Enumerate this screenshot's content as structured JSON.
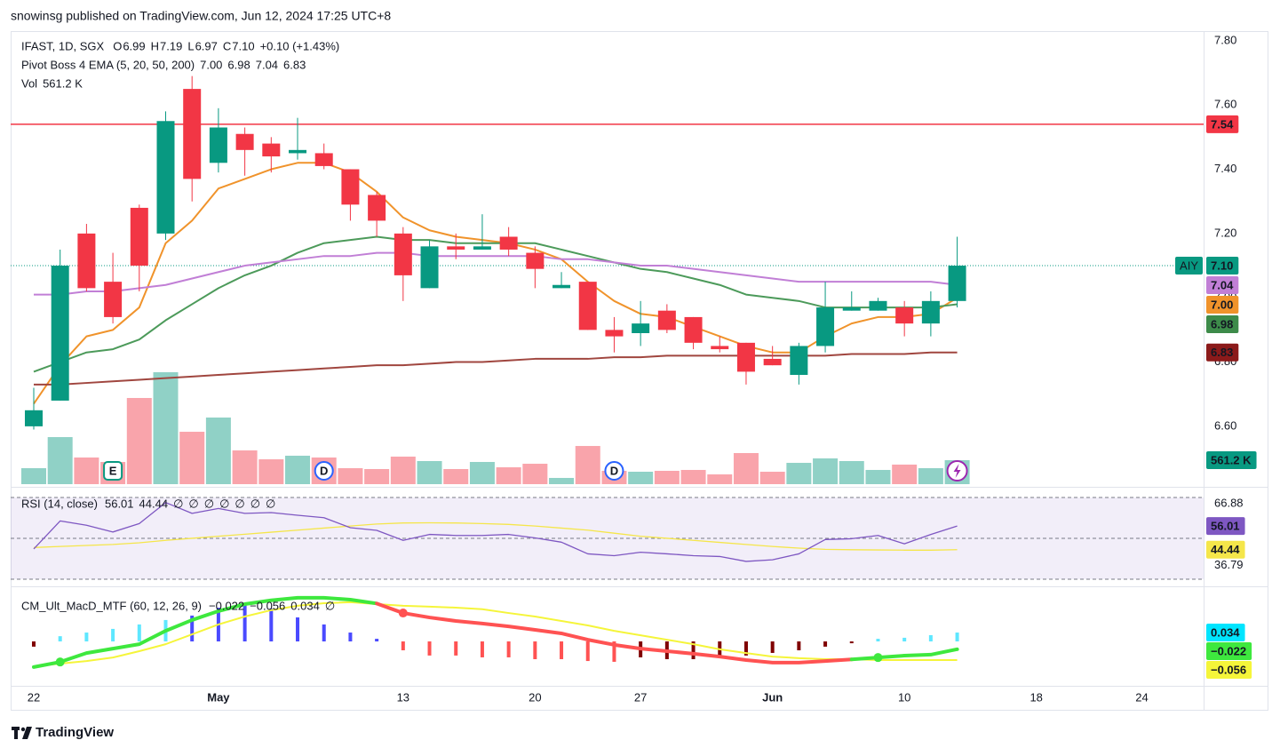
{
  "published": "snowinsg published on TradingView.com, Jun 12, 2024 17:25 UTC+8",
  "brand": "TradingView",
  "chart_data": [
    {
      "type": "candlestick",
      "title": "IFAST, 1D, SGX",
      "status": [
        {
          "text": "O",
          "color": "#131722"
        },
        {
          "text": "6.99",
          "color": "#089981"
        },
        {
          "text": "H",
          "color": "#131722"
        },
        {
          "text": "7.19",
          "color": "#089981"
        },
        {
          "text": "L",
          "color": "#131722"
        },
        {
          "text": "6.97",
          "color": "#089981"
        },
        {
          "text": "C",
          "color": "#131722"
        },
        {
          "text": "7.10",
          "color": "#089981"
        },
        {
          "text": "+0.10 (+1.43%)",
          "color": "#089981"
        }
      ],
      "indicators": [
        {
          "title": "Pivot Boss 4 EMA (5, 20, 50, 200)",
          "values": [
            {
              "text": "7.00",
              "color": "#f0932b"
            },
            {
              "text": "6.98",
              "color": "#4c9a5a"
            },
            {
              "text": "7.04",
              "color": "#c17fd6"
            },
            {
              "text": "6.83",
              "color": "#a0463f"
            }
          ]
        },
        {
          "title": "Vol",
          "values": [
            {
              "text": "561.2 K",
              "color": "#089981"
            }
          ]
        }
      ],
      "up_color": "#089981",
      "down_color": "#f23645",
      "x": [
        0,
        1,
        2,
        3,
        4,
        5,
        6,
        7,
        8,
        9,
        10,
        11,
        12,
        13,
        14,
        15,
        16,
        17,
        18,
        19,
        20,
        21,
        22,
        23,
        24,
        25,
        26,
        27,
        28,
        29,
        30,
        31,
        32,
        33,
        34,
        35
      ],
      "xlim": [
        -0.875,
        44.34
      ],
      "xticks": [
        {
          "value": 0,
          "label": "22"
        },
        {
          "value": 7,
          "label": "May"
        },
        {
          "value": 14,
          "label": "13"
        },
        {
          "value": 19,
          "label": "20"
        },
        {
          "value": 23,
          "label": "27"
        },
        {
          "value": 28,
          "label": "Jun"
        },
        {
          "value": 33,
          "label": "10"
        },
        {
          "value": 38,
          "label": "18"
        },
        {
          "value": 42,
          "label": "24"
        }
      ],
      "ylim": [
        6.42,
        7.83
      ],
      "yticks": [
        {
          "value": 6.6,
          "label": "6.60"
        },
        {
          "value": 6.8,
          "label": "6.80"
        },
        {
          "value": 7.0,
          "label": "7.00"
        },
        {
          "value": 7.2,
          "label": "7.20"
        },
        {
          "value": 7.4,
          "label": "7.40"
        },
        {
          "value": 7.6,
          "label": "7.60"
        },
        {
          "value": 7.8,
          "label": "7.80"
        }
      ],
      "open": [
        6.6,
        6.68,
        7.2,
        7.05,
        7.28,
        7.2,
        7.65,
        7.42,
        7.51,
        7.48,
        7.45,
        7.45,
        7.4,
        7.32,
        7.2,
        7.03,
        7.16,
        7.15,
        7.19,
        7.14,
        7.03,
        7.05,
        6.9,
        6.89,
        6.96,
        6.94,
        6.85,
        6.86,
        6.81,
        6.76,
        6.85,
        6.96,
        6.96,
        6.97,
        6.92,
        6.99
      ],
      "high": [
        6.72,
        7.15,
        7.23,
        7.14,
        7.29,
        7.58,
        7.69,
        7.59,
        7.53,
        7.5,
        7.56,
        7.48,
        7.4,
        7.33,
        7.22,
        7.18,
        7.2,
        7.26,
        7.22,
        7.16,
        7.08,
        7.05,
        6.94,
        6.99,
        6.98,
        6.94,
        6.88,
        6.86,
        6.85,
        6.86,
        7.05,
        7.02,
        7.0,
        6.99,
        7.02,
        7.19
      ],
      "low": [
        6.59,
        6.68,
        7.02,
        6.92,
        7.02,
        7.18,
        7.3,
        7.39,
        7.38,
        7.39,
        7.43,
        7.4,
        7.24,
        7.19,
        6.99,
        7.03,
        7.12,
        7.15,
        7.13,
        7.03,
        7.03,
        6.9,
        6.83,
        6.85,
        6.89,
        6.84,
        6.83,
        6.73,
        6.79,
        6.73,
        6.83,
        6.96,
        6.96,
        6.88,
        6.88,
        6.97
      ],
      "close": [
        6.65,
        7.1,
        7.03,
        6.94,
        7.1,
        7.55,
        7.37,
        7.53,
        7.46,
        7.44,
        7.46,
        7.41,
        7.29,
        7.24,
        7.07,
        7.16,
        7.15,
        7.16,
        7.15,
        7.09,
        7.04,
        6.9,
        6.88,
        6.92,
        6.9,
        6.86,
        6.84,
        6.77,
        6.79,
        6.85,
        6.97,
        6.97,
        6.99,
        6.92,
        6.99,
        7.1
      ],
      "series": [
        {
          "color": "#f0932b",
          "values": [
            6.67,
            6.79,
            6.88,
            6.9,
            6.97,
            7.17,
            7.24,
            7.34,
            7.37,
            7.4,
            7.42,
            7.42,
            7.39,
            7.33,
            7.25,
            7.21,
            7.19,
            7.18,
            7.17,
            7.15,
            7.12,
            7.05,
            6.99,
            6.95,
            6.94,
            6.91,
            6.88,
            6.85,
            6.83,
            6.83,
            6.88,
            6.92,
            6.94,
            6.94,
            6.95,
            7.0
          ]
        },
        {
          "color": "#4c9a5a",
          "values": [
            6.77,
            6.8,
            6.83,
            6.84,
            6.87,
            6.93,
            6.98,
            7.03,
            7.07,
            7.1,
            7.14,
            7.17,
            7.18,
            7.19,
            7.18,
            7.18,
            7.17,
            7.17,
            7.17,
            7.17,
            7.15,
            7.13,
            7.11,
            7.09,
            7.08,
            7.06,
            7.04,
            7.01,
            7.0,
            6.99,
            6.97,
            6.97,
            6.97,
            6.97,
            6.97,
            6.98
          ]
        },
        {
          "color": "#c17fd6",
          "values": [
            7.01,
            7.01,
            7.02,
            7.02,
            7.03,
            7.04,
            7.06,
            7.08,
            7.1,
            7.11,
            7.12,
            7.13,
            7.13,
            7.14,
            7.14,
            7.13,
            7.13,
            7.13,
            7.13,
            7.13,
            7.12,
            7.12,
            7.11,
            7.1,
            7.1,
            7.09,
            7.08,
            7.07,
            7.06,
            7.05,
            7.05,
            7.05,
            7.05,
            7.05,
            7.05,
            7.04
          ]
        },
        {
          "color": "#a0463f",
          "values": [
            6.73,
            6.73,
            6.735,
            6.74,
            6.745,
            6.75,
            6.755,
            6.76,
            6.765,
            6.77,
            6.775,
            6.78,
            6.785,
            6.79,
            6.79,
            6.795,
            6.8,
            6.8,
            6.805,
            6.81,
            6.81,
            6.81,
            6.815,
            6.815,
            6.82,
            6.82,
            6.82,
            6.82,
            6.82,
            6.82,
            6.82,
            6.825,
            6.825,
            6.825,
            6.83,
            6.83
          ]
        }
      ],
      "volume": [
        374000,
        1102000,
        624000,
        520000,
        2018000,
        2621000,
        1227000,
        1560000,
        790000,
        582000,
        666000,
        624000,
        374000,
        354000,
        645000,
        541000,
        354000,
        520000,
        395000,
        478000,
        146000,
        894000,
        312000,
        291000,
        312000,
        333000,
        229000,
        728000,
        291000,
        499000,
        603000,
        541000,
        333000,
        458000,
        374000,
        561200
      ],
      "volume_tag": {
        "value": 561200,
        "label": "561.2 K",
        "color": "#089981"
      },
      "hlines": [
        {
          "value": 7.54,
          "color": "#f23645"
        }
      ],
      "events": [
        {
          "x": 3,
          "label": "E",
          "color": "#089981"
        },
        {
          "x": 11,
          "label": "D",
          "color": "#2962ff"
        },
        {
          "x": 22,
          "label": "D",
          "color": "#2962ff"
        }
      ],
      "tags": [
        {
          "value": 7.54,
          "label": "7.54",
          "color": "#f23645",
          "text_color": "#ffffff"
        },
        {
          "value": 7.1,
          "label": "7.10",
          "name": "AIY",
          "color": "#089981",
          "text_color": "#ffffff"
        },
        {
          "value": 7.04,
          "label": "7.04",
          "color": "#c17fd6",
          "text_color": "#ffffff"
        },
        {
          "value": 7.0,
          "label": "7.00",
          "color": "#f0932b",
          "text_color": "#ffffff"
        },
        {
          "value": 6.98,
          "label": "6.98",
          "color": "#3d8b4a",
          "text_color": "#ffffff"
        },
        {
          "value": 6.83,
          "label": "6.83",
          "color": "#8b1a1a",
          "text_color": "#ffffff"
        }
      ]
    },
    {
      "type": "line",
      "title": "RSI (14, close)",
      "status": [
        {
          "text": "56.01",
          "color": "#7e57c2"
        },
        {
          "text": "44.44",
          "color": "#e6d84a"
        },
        {
          "text": "∅",
          "color": "#131722"
        },
        {
          "text": "∅",
          "color": "#131722"
        },
        {
          "text": "∅",
          "color": "#131722"
        },
        {
          "text": "∅",
          "color": "#131722"
        },
        {
          "text": "∅",
          "color": "#131722"
        },
        {
          "text": "∅",
          "color": "#131722"
        },
        {
          "text": "∅",
          "color": "#131722"
        }
      ],
      "ylim": [
        26.5,
        75.2
      ],
      "yticks": [
        66.88,
        36.79
      ],
      "levels": [
        70,
        50,
        30
      ],
      "band_color": "#7e57c2",
      "series": [
        {
          "color": "#7e57c2",
          "values": [
            44.8,
            58.5,
            56.4,
            53.1,
            57.2,
            67.5,
            62.2,
            64.6,
            62.2,
            62.6,
            61.3,
            60.1,
            55.2,
            53.9,
            49.0,
            51.9,
            51.4,
            51.4,
            51.9,
            50.2,
            48.1,
            42.4,
            41.5,
            43.2,
            42.4,
            41.5,
            41.1,
            38.7,
            39.5,
            42.4,
            49.4,
            49.8,
            51.4,
            47.3,
            51.9,
            56.01
          ]
        },
        {
          "color": "#f5e64a",
          "values": [
            45.5,
            46,
            46.5,
            47,
            47.8,
            49,
            50,
            51,
            52,
            53,
            54,
            55,
            56,
            57,
            57.5,
            57.6,
            57.5,
            57.2,
            56.8,
            56,
            55,
            54,
            52.5,
            51,
            50,
            49,
            48,
            47,
            46,
            45.2,
            44.6,
            44.4,
            44.3,
            44.2,
            44.2,
            44.44
          ]
        }
      ],
      "tags": [
        {
          "value": 56.01,
          "label": "56.01",
          "color": "#7e57c2",
          "text_color": "#ffffff"
        },
        {
          "value": 44.44,
          "label": "44.44",
          "color": "#f5e64a",
          "text_color": "#131722"
        }
      ]
    },
    {
      "type": "macd",
      "title": "CM_Ult_MacD_MTF (60, 12, 26, 9)",
      "status": [
        {
          "text": "−0.022",
          "color": "#22c022"
        },
        {
          "text": "−0.056",
          "color": "#d9c900"
        },
        {
          "text": "0.034",
          "color": "#00c8e0"
        },
        {
          "text": "∅",
          "color": "#131722"
        }
      ],
      "ylim": [
        -0.137,
        0.176
      ],
      "y2lim": [
        -0.17,
        0.211
      ],
      "macd": {
        "up_color": "#3ee83e",
        "down_color": "#ff5252",
        "values": [
          -0.078,
          -0.062,
          -0.034,
          -0.02,
          -0.006,
          0.036,
          0.07,
          0.098,
          0.12,
          0.132,
          0.14,
          0.14,
          0.134,
          0.122,
          0.092,
          0.078,
          0.067,
          0.059,
          0.05,
          0.039,
          0.028,
          0.008,
          -0.008,
          -0.02,
          -0.028,
          -0.036,
          -0.045,
          -0.056,
          -0.064,
          -0.064,
          -0.059,
          -0.054,
          -0.048,
          -0.042,
          -0.039,
          -0.022
        ]
      },
      "signal": {
        "color": "#f5f53a",
        "values": [
          -0.076,
          -0.067,
          -0.059,
          -0.048,
          -0.028,
          -0.006,
          0.025,
          0.056,
          0.081,
          0.101,
          0.115,
          0.123,
          0.126,
          0.12,
          0.115,
          0.112,
          0.109,
          0.104,
          0.092,
          0.081,
          0.067,
          0.053,
          0.036,
          0.022,
          0.008,
          -0.006,
          -0.022,
          -0.034,
          -0.045,
          -0.05,
          -0.053,
          -0.053,
          -0.056,
          -0.056,
          -0.056,
          -0.056
        ]
      },
      "histogram": {
        "axis": "y2",
        "values": [
          -0.02,
          0.02,
          0.034,
          0.048,
          0.065,
          0.082,
          0.099,
          0.129,
          0.143,
          0.126,
          0.092,
          0.065,
          0.034,
          0.01,
          -0.034,
          -0.054,
          -0.054,
          -0.061,
          -0.061,
          -0.068,
          -0.068,
          -0.075,
          -0.078,
          -0.061,
          -0.068,
          -0.068,
          -0.061,
          -0.054,
          -0.044,
          -0.034,
          -0.02,
          -0.007,
          0.01,
          0.014,
          0.024,
          0.034
        ],
        "colors": [
          "#800000",
          "#5ee7ff",
          "#5ee7ff",
          "#5ee7ff",
          "#5ee7ff",
          "#5ee7ff",
          "#4a4aff",
          "#4a4aff",
          "#4a4aff",
          "#4a4aff",
          "#4a4aff",
          "#4a4aff",
          "#4a4aff",
          "#4a4aff",
          "#ff5252",
          "#ff5252",
          "#ff5252",
          "#ff5252",
          "#ff5252",
          "#ff5252",
          "#ff5252",
          "#ff5252",
          "#ff5252",
          "#800000",
          "#800000",
          "#800000",
          "#800000",
          "#800000",
          "#800000",
          "#800000",
          "#800000",
          "#800000",
          "#5ee7ff",
          "#5ee7ff",
          "#5ee7ff",
          "#5ee7ff"
        ]
      },
      "tags": [
        {
          "value": 0.034,
          "label": "0.034",
          "axis": "y2",
          "color": "#00e5ff",
          "text_color": "#131722"
        },
        {
          "value": -0.022,
          "label": "−0.022",
          "color": "#3ee83e",
          "text_color": "#131722"
        },
        {
          "value": -0.056,
          "label": "−0.056",
          "color": "#f5f53a",
          "text_color": "#131722"
        }
      ]
    }
  ]
}
